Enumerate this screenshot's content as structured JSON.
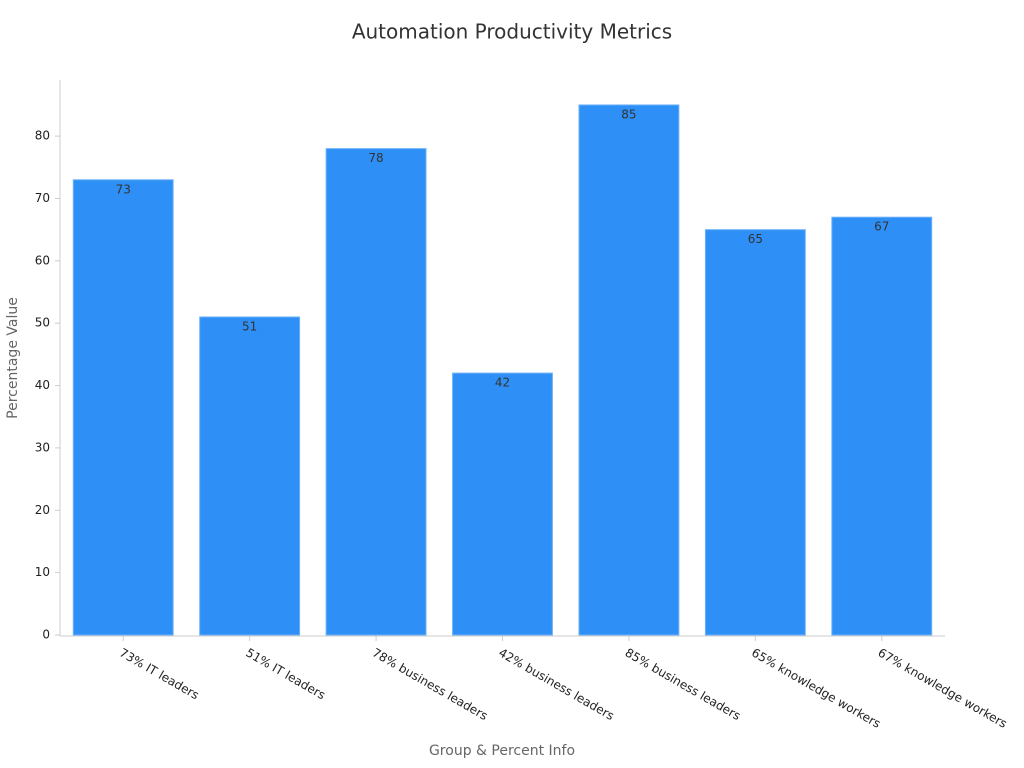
{
  "chart_data": {
    "type": "bar",
    "title": "Automation Productivity Metrics",
    "x_label": "Group & Percent Info",
    "y_label": "Percentage Value",
    "categories": [
      "73% IT leaders",
      "51% IT leaders",
      "78% business leaders",
      "42% business leaders",
      "85% business leaders",
      "65% knowledge workers",
      "67% knowledge workers"
    ],
    "values": [
      73,
      51,
      78,
      42,
      85,
      65,
      67
    ],
    "color": "#2e90f6",
    "ylim": [
      0,
      89
    ],
    "yticks": [
      0,
      10,
      20,
      30,
      40,
      50,
      60,
      70,
      80
    ],
    "grid": false
  }
}
